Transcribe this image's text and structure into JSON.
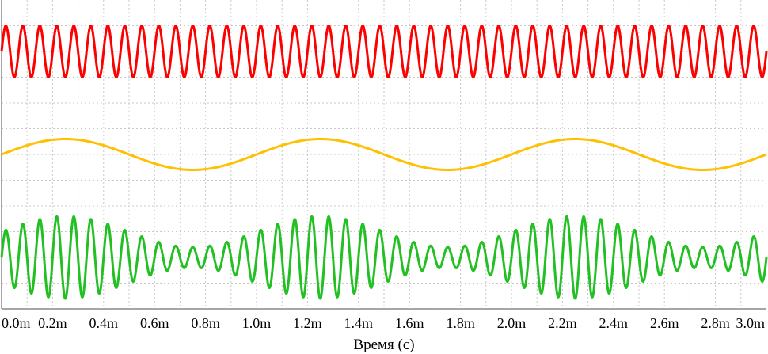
{
  "chart_data": {
    "type": "line",
    "title": "",
    "xlabel": "Время (c)",
    "ylabel": "",
    "xlim": [
      0,
      0.003
    ],
    "ylim": [
      0,
      12
    ],
    "grid": true,
    "legend": "none",
    "x_ticks": [
      0,
      0.0002,
      0.0004,
      0.0006,
      0.0008,
      0.001,
      0.0012,
      0.0014,
      0.0016,
      0.0018,
      0.002,
      0.0022,
      0.0024,
      0.0026,
      0.0028,
      0.003
    ],
    "x_tick_labels": [
      "0.0m",
      "0.2m",
      "0.4m",
      "0.6m",
      "0.8m",
      "1.0m",
      "1.2m",
      "1.4m",
      "1.6m",
      "1.8m",
      "2.0m",
      "2.2m",
      "2.4m",
      "2.6m",
      "2.8m",
      "3.0m"
    ],
    "series": [
      {
        "color": "#ff0000",
        "kind": "sine",
        "frequency_hz": 15000,
        "amplitude": 1.0,
        "offset": 10
      },
      {
        "color": "#ffc000",
        "kind": "sine",
        "frequency_hz": 1000,
        "amplitude": 0.6,
        "offset": 6
      },
      {
        "color": "#22c022",
        "kind": "am",
        "carrier_hz": 15000,
        "modulation_hz": 1000,
        "amplitude": 1.0,
        "modulation_index": 0.6,
        "offset": 2
      }
    ]
  }
}
